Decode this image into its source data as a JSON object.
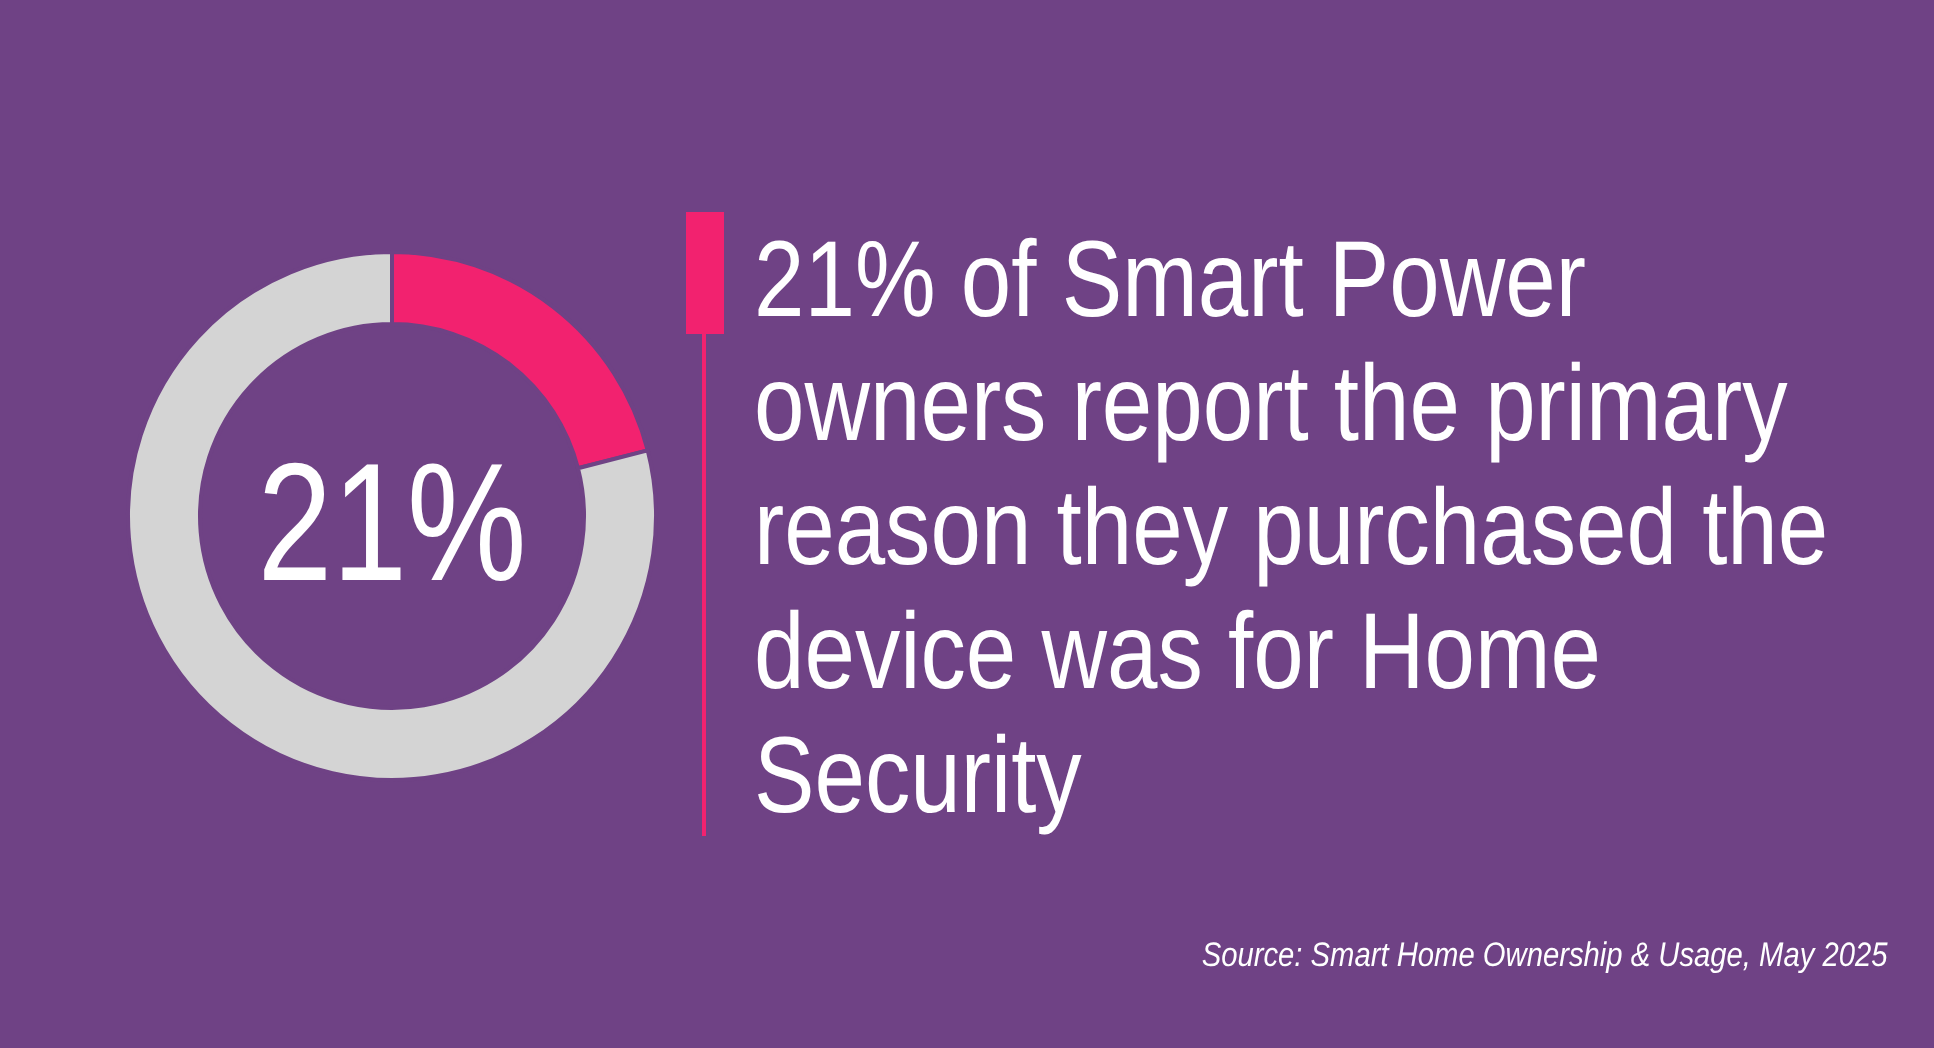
{
  "chart_data": {
    "type": "donut",
    "title": "21% of Smart Power owners report the primary reason they purchased the device was for Home Security",
    "categories": [
      null,
      null
    ],
    "values": [
      21,
      79
    ],
    "colors": [
      "#f2226f",
      "#d4d4d4"
    ],
    "annotations": [
      "21%",
      "Source: Smart Home Ownership & Usage, May 2025"
    ]
  }
}
